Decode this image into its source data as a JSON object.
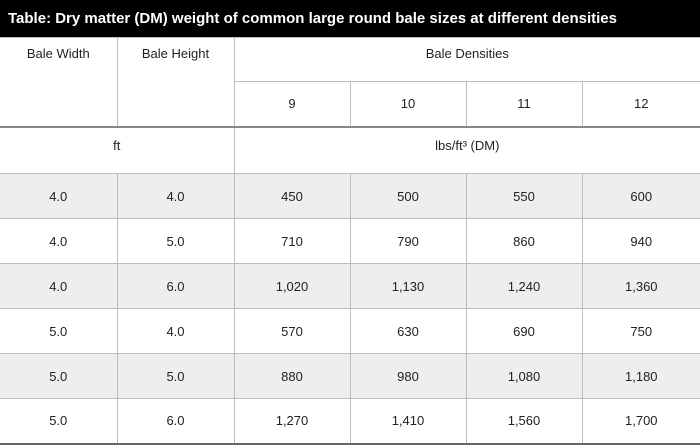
{
  "title": "Table: Dry matter (DM) weight of common large round bale sizes at different densities",
  "headers": {
    "bale_width": "Bale Width",
    "bale_height": "Bale Height",
    "bale_densities": "Bale Densities",
    "densities": [
      "9",
      "10",
      "11",
      "12"
    ]
  },
  "units": {
    "dimension": "ft",
    "density": "lbs/ft³ (DM)"
  },
  "rows": [
    [
      "4.0",
      "4.0",
      "450",
      "500",
      "550",
      "600"
    ],
    [
      "4.0",
      "5.0",
      "710",
      "790",
      "860",
      "940"
    ],
    [
      "4.0",
      "6.0",
      "1,020",
      "1,130",
      "1,240",
      "1,360"
    ],
    [
      "5.0",
      "4.0",
      "570",
      "630",
      "690",
      "750"
    ],
    [
      "5.0",
      "5.0",
      "880",
      "980",
      "1,080",
      "1,180"
    ],
    [
      "5.0",
      "6.0",
      "1,270",
      "1,410",
      "1,560",
      "1,700"
    ]
  ]
}
